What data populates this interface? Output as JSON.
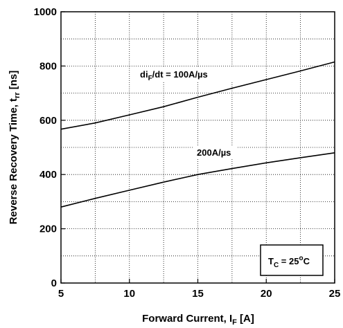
{
  "chart_data": {
    "type": "line",
    "xlabel": "Forward Current, I",
    "xlabel_sub": "F",
    "xlabel_unit": " [A]",
    "ylabel": "Reverse Recovery Time, t",
    "ylabel_sub": "rr",
    "ylabel_unit": " [ns]",
    "xlim": [
      5,
      25
    ],
    "ylim": [
      0,
      1000
    ],
    "x_ticks": [
      5,
      10,
      15,
      20,
      25
    ],
    "y_ticks": [
      0,
      200,
      400,
      600,
      800,
      1000
    ],
    "grid": true,
    "series": [
      {
        "name": "di_F/dt = 100A/µs",
        "x": [
          5,
          7.5,
          10,
          12.5,
          15,
          17.5,
          20,
          22.5,
          25
        ],
        "y": [
          567,
          590,
          620,
          650,
          685,
          718,
          750,
          782,
          815
        ]
      },
      {
        "name": "200A/µs",
        "x": [
          5,
          7.5,
          10,
          12.5,
          15,
          17.5,
          20,
          22.5,
          25
        ],
        "y": [
          280,
          312,
          342,
          372,
          400,
          422,
          443,
          462,
          480
        ]
      }
    ],
    "annotations": {
      "series1_label_main": "di",
      "series1_label_sub": "F",
      "series1_label_rest": "/dt = 100A/µs",
      "series2_label": "200A/µs",
      "condition_main": "T",
      "condition_sub": "C",
      "condition_rest": " = 25",
      "condition_sup": "o",
      "condition_unit": "C"
    }
  }
}
